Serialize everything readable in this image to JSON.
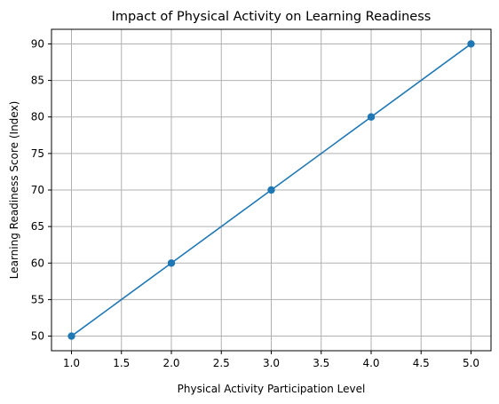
{
  "chart_data": {
    "type": "line",
    "title": "Impact of Physical Activity on Learning Readiness",
    "xlabel": "Physical Activity Participation Level",
    "ylabel": "Learning Readiness Score (Index)",
    "x": [
      1.0,
      2.0,
      3.0,
      4.0,
      5.0
    ],
    "series": [
      {
        "values": [
          50,
          60,
          70,
          80,
          90
        ]
      }
    ],
    "xlim": [
      0.8,
      5.2
    ],
    "ylim": [
      48,
      92
    ],
    "x_ticks": [
      1.0,
      1.5,
      2.0,
      2.5,
      3.0,
      3.5,
      4.0,
      4.5,
      5.0
    ],
    "x_tick_labels": [
      "1.0",
      "1.5",
      "2.0",
      "2.5",
      "3.0",
      "3.5",
      "4.0",
      "4.5",
      "5.0"
    ],
    "y_ticks": [
      50,
      55,
      60,
      65,
      70,
      75,
      80,
      85,
      90
    ],
    "y_tick_labels": [
      "50",
      "55",
      "60",
      "65",
      "70",
      "75",
      "80",
      "85",
      "90"
    ],
    "grid": true,
    "line_color": "#1f77b4",
    "marker": "circle",
    "grid_color": "#b0b0b0"
  }
}
